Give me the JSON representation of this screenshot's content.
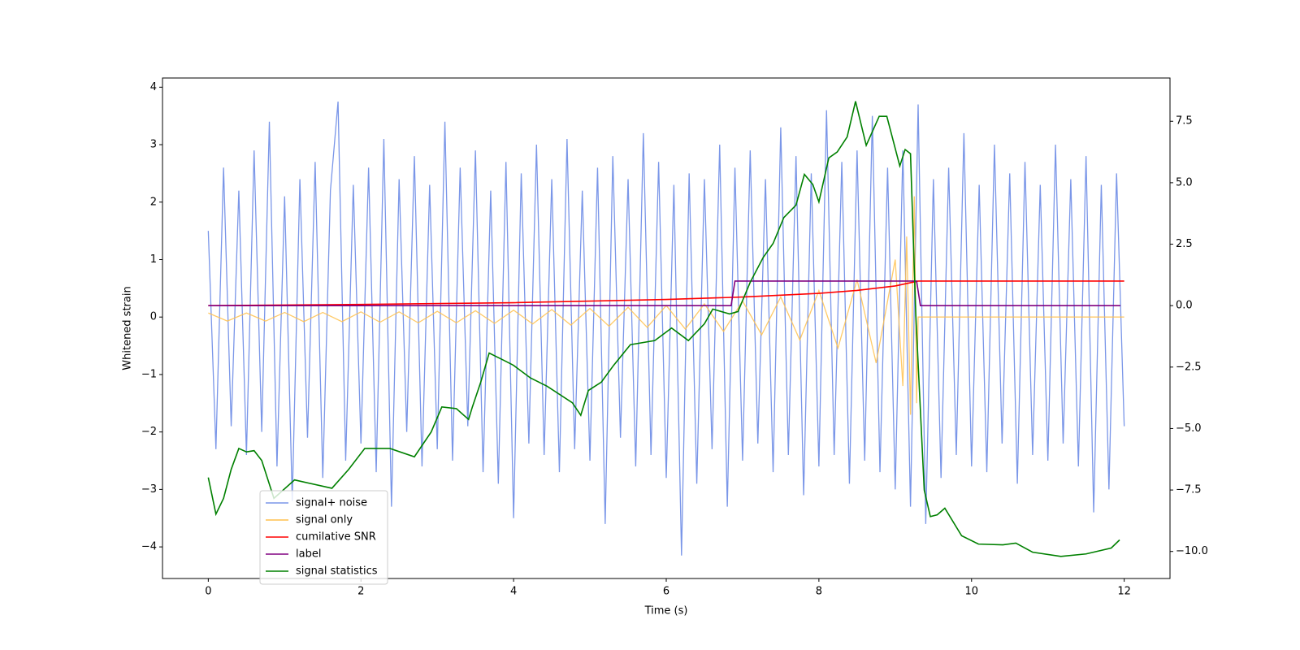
{
  "chart_data": {
    "type": "line",
    "xlabel": "Time (s)",
    "ylabel": "Whitened strain",
    "xlim": [
      -0.6,
      12.6
    ],
    "ylim": [
      -4.55,
      4.16
    ],
    "y2lim": [
      -11.1,
      9.26
    ],
    "xticks": [
      0,
      2,
      4,
      6,
      8,
      10,
      12
    ],
    "yticks": [
      {
        "value": -4,
        "label": "−4"
      },
      {
        "value": -3,
        "label": "−3"
      },
      {
        "value": -2,
        "label": "−2"
      },
      {
        "value": -1,
        "label": "−1"
      },
      0,
      1,
      2,
      3,
      4
    ],
    "y2ticks": [
      {
        "value": -10,
        "label": "−10.0"
      },
      {
        "value": -7.5,
        "label": "−7.5"
      },
      {
        "value": -5,
        "label": "−5.0"
      },
      {
        "value": -2.5,
        "label": "−2.5"
      },
      {
        "value": 0,
        "label": "0.0"
      },
      2.5,
      {
        "value": 5,
        "label": "5.0"
      },
      7.5
    ],
    "legend": "lower left",
    "series": [
      {
        "name": "signal+ noise",
        "color": "#7a96e8",
        "x": [
          0,
          0.1,
          0.2,
          0.3,
          0.4,
          0.5,
          0.6,
          0.7,
          0.8,
          0.9,
          1,
          1.1,
          1.2,
          1.3,
          1.4,
          1.5,
          1.6,
          1.7,
          1.8,
          1.9,
          2,
          2.1,
          2.2,
          2.3,
          2.4,
          2.5,
          2.6,
          2.7,
          2.8,
          2.9,
          3,
          3.1,
          3.2,
          3.3,
          3.4,
          3.5,
          3.6,
          3.7,
          3.8,
          3.9,
          4,
          4.1,
          4.2,
          4.3,
          4.4,
          4.5,
          4.6,
          4.7,
          4.8,
          4.9,
          5,
          5.1,
          5.2,
          5.3,
          5.4,
          5.5,
          5.6,
          5.7,
          5.8,
          5.9,
          6,
          6.1,
          6.2,
          6.3,
          6.4,
          6.5,
          6.6,
          6.7,
          6.8,
          6.9,
          7,
          7.1,
          7.2,
          7.3,
          7.4,
          7.5,
          7.6,
          7.7,
          7.8,
          7.9,
          8,
          8.1,
          8.2,
          8.3,
          8.4,
          8.5,
          8.6,
          8.7,
          8.8,
          8.9,
          9,
          9.1,
          9.2,
          9.3,
          9.4,
          9.5,
          9.6,
          9.7,
          9.8,
          9.9,
          10,
          10.1,
          10.2,
          10.3,
          10.4,
          10.5,
          10.6,
          10.7,
          10.8,
          10.9,
          11,
          11.1,
          11.2,
          11.3,
          11.4,
          11.5,
          11.6,
          11.7,
          11.8,
          11.9,
          12
        ],
        "values": [
          1.5,
          -2.3,
          2.6,
          -1.9,
          2.2,
          -2.4,
          2.9,
          -2.0,
          3.4,
          -2.6,
          2.1,
          -3.2,
          2.4,
          -2.1,
          2.7,
          -2.8,
          2.2,
          3.75,
          -2.5,
          2.3,
          -2.2,
          2.6,
          -2.7,
          3.1,
          -3.3,
          2.4,
          -2.0,
          2.8,
          -2.6,
          2.3,
          -2.3,
          3.4,
          -2.5,
          2.6,
          -1.9,
          2.9,
          -2.7,
          2.2,
          -2.9,
          2.7,
          -3.5,
          2.5,
          -2.2,
          3.0,
          -2.4,
          2.4,
          -2.7,
          3.1,
          -2.3,
          2.2,
          -2.5,
          2.6,
          -3.6,
          2.8,
          -2.1,
          2.4,
          -2.6,
          3.2,
          -2.4,
          2.7,
          -2.8,
          2.3,
          -4.15,
          2.5,
          -2.9,
          2.4,
          -2.3,
          3.0,
          -3.3,
          2.6,
          -2.5,
          2.9,
          -2.2,
          2.4,
          -2.7,
          3.3,
          -2.4,
          2.8,
          -3.1,
          2.5,
          -2.6,
          3.6,
          -2.4,
          2.7,
          -2.9,
          2.9,
          -2.5,
          3.5,
          -2.7,
          2.6,
          -3.0,
          2.9,
          -3.3,
          3.7,
          -3.6,
          2.4,
          -2.8,
          2.6,
          -2.4,
          3.2,
          -2.6,
          2.3,
          -2.7,
          3.0,
          -2.2,
          2.5,
          -2.9,
          2.7,
          -2.4,
          2.3,
          -2.5,
          3.0,
          -2.2,
          2.4,
          -2.6,
          2.8,
          -3.4,
          2.3,
          -3.0,
          2.5,
          -1.9
        ]
      },
      {
        "name": "signal only",
        "color": "#ffc14d",
        "x": [
          0,
          0.25,
          0.5,
          0.75,
          1,
          1.25,
          1.5,
          1.75,
          2,
          2.25,
          2.5,
          2.75,
          3,
          3.25,
          3.5,
          3.75,
          4,
          4.25,
          4.5,
          4.75,
          5,
          5.25,
          5.5,
          5.75,
          6,
          6.25,
          6.5,
          6.75,
          7,
          7.25,
          7.5,
          7.75,
          8,
          8.25,
          8.5,
          8.75,
          9,
          9.1,
          9.15,
          9.2,
          9.25,
          9.28,
          9.3,
          12
        ],
        "values": [
          0.07,
          -0.07,
          0.07,
          -0.07,
          0.08,
          -0.08,
          0.08,
          -0.08,
          0.09,
          -0.09,
          0.09,
          -0.1,
          0.1,
          -0.1,
          0.11,
          -0.11,
          0.12,
          -0.12,
          0.13,
          -0.14,
          0.15,
          -0.16,
          0.17,
          -0.18,
          0.2,
          -0.21,
          0.23,
          -0.25,
          0.28,
          -0.31,
          0.35,
          -0.4,
          0.46,
          -0.54,
          0.65,
          -0.8,
          1.0,
          -1.2,
          1.4,
          -1.7,
          2.1,
          -1.5,
          0,
          0
        ]
      },
      {
        "name": "cumilative SNR",
        "color": "#ff0000",
        "axis": "y2",
        "x": [
          0,
          2,
          4,
          6,
          7,
          8,
          8.5,
          9,
          9.3,
          12
        ],
        "values": [
          0,
          0.05,
          0.12,
          0.25,
          0.35,
          0.5,
          0.62,
          0.8,
          1.0,
          1.0
        ]
      },
      {
        "name": "label",
        "color": "#800080",
        "axis": "y2",
        "x": [
          0,
          6.85,
          6.9,
          9.28,
          9.33,
          11.95
        ],
        "values": [
          0,
          0,
          1,
          1,
          0,
          0
        ]
      },
      {
        "name": "signal statistics",
        "color": "#008000",
        "axis": "y2",
        "x": [
          0,
          0.1,
          0.2,
          0.3,
          0.4,
          0.5,
          0.6,
          0.7,
          0.86,
          1.13,
          1.62,
          1.84,
          2.05,
          2.38,
          2.7,
          2.92,
          3.06,
          3.25,
          3.41,
          3.46,
          3.57,
          3.68,
          3.9,
          4.0,
          4.22,
          4.44,
          4.77,
          4.88,
          4.98,
          5.15,
          5.31,
          5.53,
          5.85,
          6.07,
          6.29,
          6.5,
          6.61,
          6.83,
          6.94,
          7.1,
          7.27,
          7.4,
          7.54,
          7.7,
          7.81,
          7.92,
          8.0,
          8.13,
          8.24,
          8.37,
          8.48,
          8.62,
          8.79,
          8.89,
          9.06,
          9.13,
          9.2,
          9.27,
          9.38,
          9.46,
          9.55,
          9.65,
          9.87,
          10.09,
          10.41,
          10.58,
          10.8,
          11.17,
          11.5,
          11.83,
          11.94
        ],
        "values": [
          -6.99,
          -8.48,
          -7.84,
          -6.66,
          -5.81,
          -5.95,
          -5.9,
          -6.3,
          -7.84,
          -7.09,
          -7.43,
          -6.66,
          -5.81,
          -5.81,
          -6.15,
          -5.14,
          -4.12,
          -4.19,
          -4.63,
          -4.12,
          -3.11,
          -1.93,
          -2.27,
          -2.43,
          -2.94,
          -3.28,
          -3.95,
          -4.46,
          -3.45,
          -3.11,
          -2.43,
          -1.59,
          -1.42,
          -0.91,
          -1.42,
          -0.74,
          -0.14,
          -0.34,
          -0.24,
          0.95,
          1.96,
          2.53,
          3.58,
          4.09,
          5.34,
          4.93,
          4.22,
          6.01,
          6.25,
          6.86,
          8.31,
          6.52,
          7.7,
          7.7,
          5.68,
          6.35,
          6.18,
          -0.41,
          -7.5,
          -8.58,
          -8.51,
          -8.24,
          -9.36,
          -9.7,
          -9.73,
          -9.66,
          -10.03,
          -10.2,
          -10.1,
          -9.86,
          -9.53
        ]
      }
    ]
  }
}
